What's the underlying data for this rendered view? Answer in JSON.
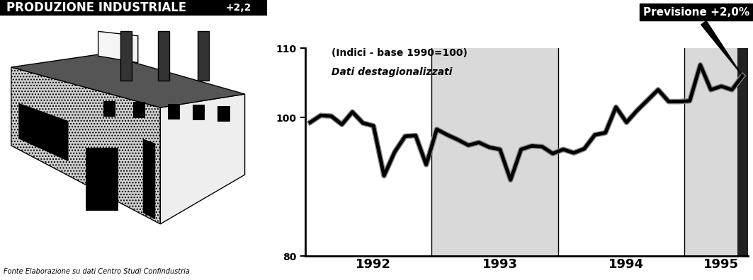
{
  "chart_data": {
    "type": "line",
    "title": "PRODUZIONE INDUSTRIALE",
    "title_annotation": "+2,2",
    "subtitle": "(Indici - base 1990=100)",
    "subtitle2": "Dati destagionalizzati",
    "forecast_label": "Previsione +2,0%",
    "source": "Fonte Elaborazione su dati Centro Studi Confindustria",
    "categories": [
      null,
      null,
      null,
      null,
      null,
      null,
      "1992",
      null,
      null,
      null,
      null,
      null,
      null,
      null,
      null,
      null,
      null,
      null,
      "1993",
      null,
      null,
      null,
      null,
      null,
      null,
      null,
      null,
      null,
      null,
      null,
      "1994",
      null,
      null,
      null,
      null,
      null,
      null,
      null,
      null,
      "1995",
      null,
      null
    ],
    "values": [
      99.3,
      100.3,
      100.2,
      99.0,
      100.8,
      99.2,
      98.8,
      91.6,
      95.0,
      97.3,
      97.4,
      93.2,
      98.3,
      97.5,
      96.8,
      96.0,
      96.4,
      95.7,
      95.4,
      91.0,
      95.4,
      95.9,
      95.8,
      94.8,
      95.4,
      94.9,
      95.5,
      97.5,
      97.8,
      101.5,
      99.3,
      101.0,
      102.5,
      104.0,
      102.3,
      102.3,
      102.4,
      107.6,
      104.0,
      104.5,
      104.0,
      106.0
    ],
    "color": "#000000",
    "ylim": [
      80,
      110
    ],
    "yticks": [
      80,
      100,
      110
    ],
    "grid": false
  }
}
